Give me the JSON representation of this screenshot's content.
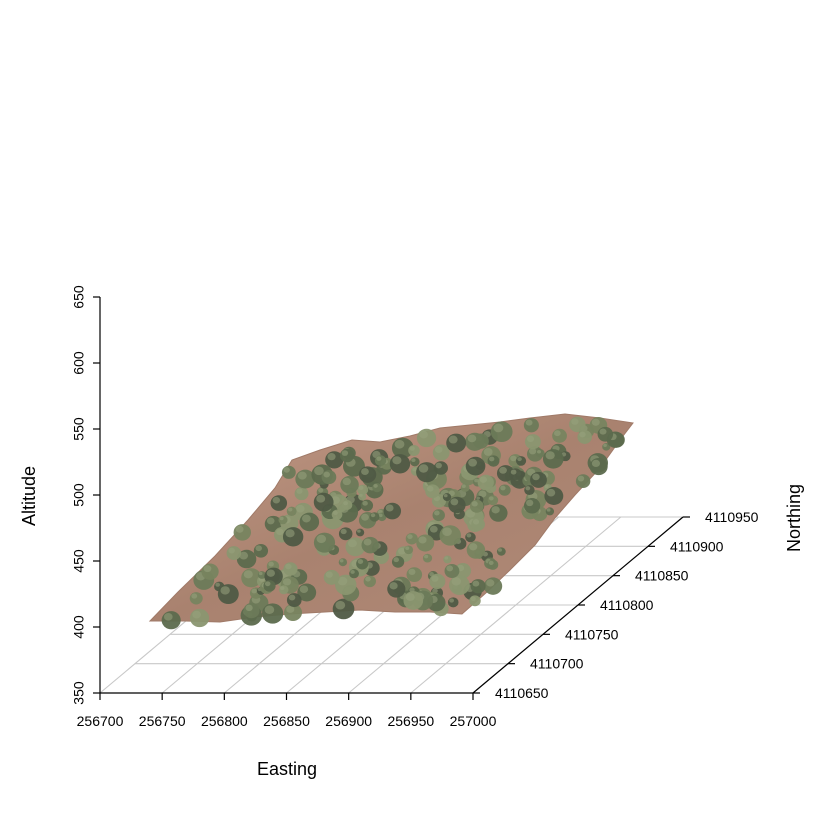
{
  "chart_data": {
    "type": "3d-surface",
    "title": "",
    "xlabel": "Easting",
    "ylabel": "Northing",
    "zlabel": "Altitude",
    "x_ticks": [
      "256700",
      "256750",
      "256800",
      "256850",
      "256900",
      "256950",
      "257000"
    ],
    "y_ticks": [
      "4110650",
      "4110700",
      "4110750",
      "4110800",
      "4110850",
      "4110900",
      "4110950"
    ],
    "z_ticks": [
      "350",
      "400",
      "450",
      "500",
      "550",
      "600",
      "650"
    ],
    "x_range": [
      256700,
      257000
    ],
    "y_range": [
      4110650,
      4110950
    ],
    "z_range": [
      350,
      650
    ],
    "grid": "floor",
    "surface_description_colors": {
      "ground": "#a9826f",
      "ground_light": "#c39a86",
      "vegetation_dark": "#4f5a45",
      "vegetation_mid": "#6b7a58",
      "vegetation_light": "#8a9670"
    }
  }
}
